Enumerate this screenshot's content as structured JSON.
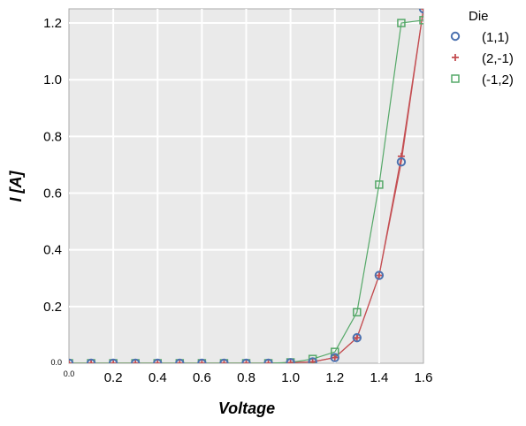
{
  "chart_data": {
    "type": "line",
    "xlabel": "Voltage",
    "ylabel": "I [A]",
    "xlim": [
      0.0,
      1.6
    ],
    "ylim": [
      0.0,
      1.25
    ],
    "grid": true,
    "x_ticks": [
      {
        "value": 0.0,
        "label": "0.0",
        "small": true
      },
      {
        "value": 0.2,
        "label": "0.2"
      },
      {
        "value": 0.4,
        "label": "0.4"
      },
      {
        "value": 0.6,
        "label": "0.6"
      },
      {
        "value": 0.8,
        "label": "0.8"
      },
      {
        "value": 1.0,
        "label": "1.0"
      },
      {
        "value": 1.2,
        "label": "1.2"
      },
      {
        "value": 1.4,
        "label": "1.4"
      },
      {
        "value": 1.6,
        "label": "1.6"
      }
    ],
    "y_ticks": [
      {
        "value": 0.0,
        "label": "0.0",
        "small": true
      },
      {
        "value": 0.2,
        "label": "0.2"
      },
      {
        "value": 0.4,
        "label": "0.4"
      },
      {
        "value": 0.6,
        "label": "0.6"
      },
      {
        "value": 0.8,
        "label": "0.8"
      },
      {
        "value": 1.0,
        "label": "1.0"
      },
      {
        "value": 1.2,
        "label": "1.2"
      }
    ],
    "legend": {
      "title": "Die",
      "placement": "outside-top-right"
    },
    "x": [
      0.0,
      0.1,
      0.2,
      0.3,
      0.4,
      0.5,
      0.6,
      0.7,
      0.8,
      0.9,
      1.0,
      1.1,
      1.2,
      1.3,
      1.4,
      1.5,
      1.6
    ],
    "series": [
      {
        "name": "(1,1)",
        "marker": "circle",
        "color": "#4c72b0",
        "line_color": "#c44e52",
        "values": [
          0,
          0,
          0,
          0,
          0,
          0,
          0,
          0,
          0,
          0,
          0.002,
          0.005,
          0.02,
          0.09,
          0.31,
          0.71,
          1.25
        ]
      },
      {
        "name": "(2,-1)",
        "marker": "plus",
        "color": "#c44e52",
        "line_color": "#c44e52",
        "values": [
          0,
          0,
          0,
          0,
          0,
          0,
          0,
          0,
          0,
          0,
          0.002,
          0.005,
          0.02,
          0.09,
          0.31,
          0.73,
          1.25
        ]
      },
      {
        "name": "(-1,2)",
        "marker": "square",
        "color": "#55a868",
        "line_color": "#55a868",
        "values": [
          0,
          0,
          0,
          0,
          0,
          0,
          0,
          0,
          0,
          0,
          0.003,
          0.015,
          0.04,
          0.18,
          0.63,
          1.2,
          1.21
        ]
      }
    ]
  }
}
